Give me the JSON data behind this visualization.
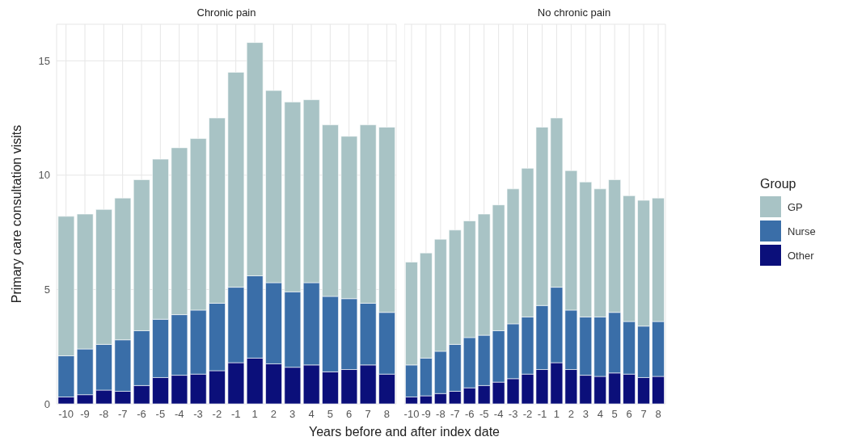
{
  "chart_data": [
    {
      "type": "bar",
      "title": "Chronic pain",
      "xlabel": "Years before and after index date",
      "ylabel": "Primary care consultation visits",
      "categories": [
        "-10",
        "-9",
        "-8",
        "-7",
        "-6",
        "-5",
        "-4",
        "-3",
        "-2",
        "-1",
        "1",
        "2",
        "3",
        "4",
        "5",
        "6",
        "7",
        "8"
      ],
      "stacked": true,
      "ylim": [
        0,
        16.6
      ],
      "yticks": [
        0,
        5,
        10,
        15
      ],
      "grid": true,
      "legend": false,
      "series": [
        {
          "color": "#0b0f7a",
          "values": [
            0.3,
            0.4,
            0.6,
            0.55,
            0.8,
            1.15,
            1.25,
            1.3,
            1.45,
            1.8,
            2.0,
            1.75,
            1.6,
            1.7,
            1.4,
            1.5,
            1.7,
            1.3
          ]
        },
        {
          "color": "#3a6ea8",
          "values": [
            1.8,
            2.0,
            2.0,
            2.25,
            2.4,
            2.55,
            2.65,
            2.8,
            2.95,
            3.3,
            3.6,
            3.55,
            3.3,
            3.6,
            3.3,
            3.1,
            2.7,
            2.7
          ]
        },
        {
          "color": "#a8c3c5",
          "values": [
            6.1,
            5.9,
            5.9,
            6.2,
            6.6,
            7.0,
            7.3,
            7.5,
            8.1,
            9.4,
            10.2,
            8.4,
            8.3,
            8.0,
            7.5,
            7.1,
            7.8,
            8.1
          ]
        }
      ]
    },
    {
      "type": "bar",
      "title": "No chronic pain",
      "legend_title": "Group",
      "categories": [
        "-10",
        "-9",
        "-8",
        "-7",
        "-6",
        "-5",
        "-4",
        "-3",
        "-2",
        "-1",
        "1",
        "2",
        "3",
        "4",
        "5",
        "6",
        "7",
        "8"
      ],
      "stacked": true,
      "ylim": [
        0,
        16.6
      ],
      "yticks": [
        0,
        5,
        10,
        15
      ],
      "tick_labels": "x",
      "grid": true,
      "legend": "right",
      "series": [
        {
          "name": "Other",
          "color": "#0b0f7a",
          "values": [
            0.3,
            0.35,
            0.45,
            0.55,
            0.7,
            0.8,
            0.95,
            1.1,
            1.3,
            1.5,
            1.8,
            1.5,
            1.25,
            1.2,
            1.35,
            1.3,
            1.15,
            1.2
          ]
        },
        {
          "name": "Nurse",
          "color": "#3a6ea8",
          "values": [
            1.4,
            1.65,
            1.85,
            2.05,
            2.2,
            2.2,
            2.25,
            2.4,
            2.5,
            2.8,
            3.3,
            2.6,
            2.55,
            2.6,
            2.65,
            2.3,
            2.25,
            2.4
          ]
        },
        {
          "name": "GP",
          "color": "#a8c3c5",
          "values": [
            4.5,
            4.6,
            4.9,
            5.0,
            5.1,
            5.3,
            5.5,
            5.9,
            6.5,
            7.8,
            7.4,
            6.1,
            5.9,
            5.6,
            5.8,
            5.5,
            5.5,
            5.4
          ]
        }
      ]
    }
  ]
}
